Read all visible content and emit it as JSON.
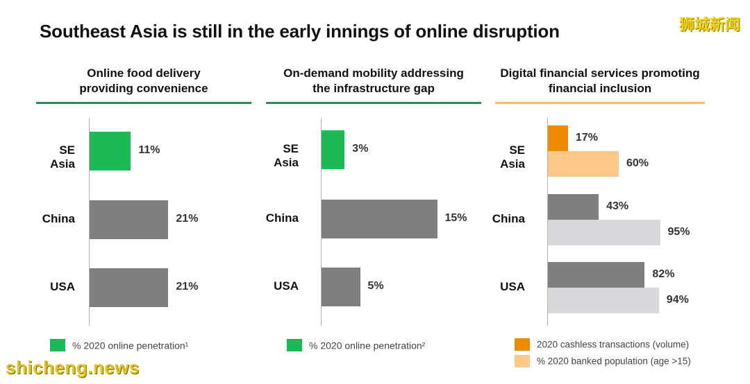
{
  "header": {
    "title": "Southeast Asia is still in the early innings of online disruption"
  },
  "watermarks": {
    "top_right": "狮城新闻",
    "bottom_left": "shicheng.news"
  },
  "colors": {
    "green": "#1db954",
    "dark_gray": "#7f7f7f",
    "light_gray": "#d9d9db",
    "orange": "#f08a00",
    "light_orange": "#fdc98a",
    "rule_green": "#2e8b57",
    "rule_orange": "#f6be6a"
  },
  "chart_data": [
    {
      "type": "bar",
      "orientation": "horizontal",
      "title": "Online food delivery providing convenience",
      "categories": [
        "SE Asia",
        "China",
        "USA"
      ],
      "series": [
        {
          "name": "% 2020 online penetration¹",
          "values": [
            11,
            21,
            21
          ]
        }
      ],
      "value_labels": [
        "11%",
        "21%",
        "21%"
      ],
      "highlight_category": "SE Asia",
      "legend": [
        {
          "label": "% 2020 online penetration¹",
          "color": "#1db954"
        }
      ]
    },
    {
      "type": "bar",
      "orientation": "horizontal",
      "title": "On-demand mobility addressing the infrastructure gap",
      "categories": [
        "SE Asia",
        "China",
        "USA"
      ],
      "series": [
        {
          "name": "% 2020 online penetration²",
          "values": [
            3,
            15,
            5
          ]
        }
      ],
      "value_labels": [
        "3%",
        "15%",
        "5%"
      ],
      "highlight_category": "SE Asia",
      "legend": [
        {
          "label": "% 2020 online penetration²",
          "color": "#1db954"
        }
      ]
    },
    {
      "type": "bar",
      "orientation": "horizontal",
      "title": "Digital financial services promoting financial inclusion",
      "categories": [
        "SE Asia",
        "China",
        "USA"
      ],
      "series": [
        {
          "name": "2020 cashless transactions (volume)",
          "values": [
            17,
            43,
            82
          ]
        },
        {
          "name": "% 2020 banked population (age >15)",
          "values": [
            60,
            95,
            94
          ]
        }
      ],
      "value_labels": [
        [
          "17%",
          "43%",
          "82%"
        ],
        [
          "60%",
          "95%",
          "94%"
        ]
      ],
      "highlight_category": "SE Asia",
      "legend": [
        {
          "label": "2020 cashless transactions (volume)",
          "color": "#f08a00"
        },
        {
          "label": "% 2020 banked population (age >15)",
          "color": "#fdc98a"
        }
      ]
    }
  ]
}
